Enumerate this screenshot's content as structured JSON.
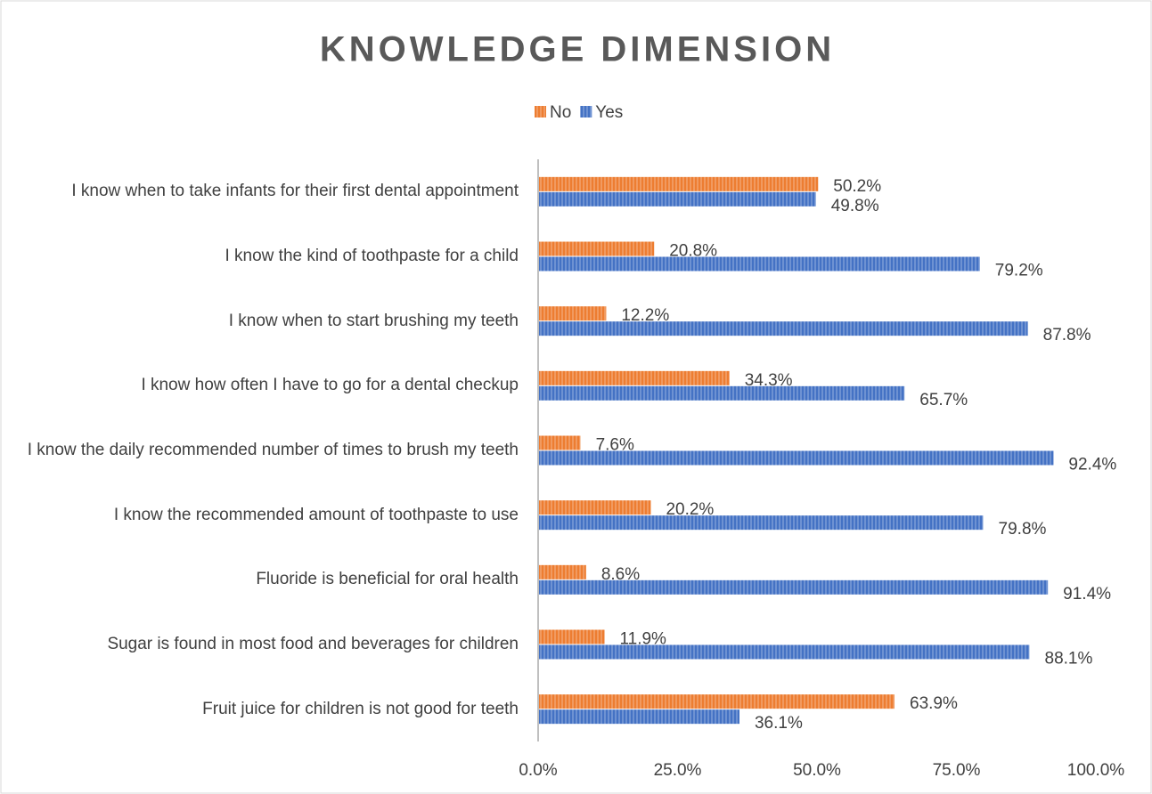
{
  "chart_data": {
    "type": "hbar",
    "title": "KNOWLEDGE DIMENSION",
    "categories": [
      "I know when to take infants for their first dental appointment",
      "I know the kind of toothpaste for a child",
      "I know when to start brushing my teeth",
      "I know how often I have to go for a dental checkup",
      "I know the daily recommended number of times to brush my teeth",
      "I know the recommended amount of toothpaste to use",
      "Fluoride is beneficial for oral health",
      "Sugar is found in most food and beverages for children",
      "Fruit juice for children is not good for teeth"
    ],
    "series": [
      {
        "name": "No",
        "color": "#ED7D31",
        "values": [
          50.2,
          20.8,
          12.2,
          34.3,
          7.6,
          20.2,
          8.6,
          11.9,
          63.9
        ],
        "value_labels": [
          "50.2%",
          "20.8%",
          "12.2%",
          "34.3%",
          "7.6%",
          "20.2%",
          "8.6%",
          "11.9%",
          "63.9%"
        ]
      },
      {
        "name": "Yes",
        "color": "#4472C4",
        "values": [
          49.8,
          79.2,
          87.8,
          65.7,
          92.4,
          79.8,
          91.4,
          88.1,
          36.1
        ],
        "value_labels": [
          "49.8%",
          "79.2%",
          "87.8%",
          "65.7%",
          "92.4%",
          "79.8%",
          "91.4%",
          "88.1%",
          "36.1%"
        ]
      }
    ],
    "xlim": [
      0,
      100
    ],
    "xticks": [
      {
        "value": 0,
        "label": "0.0%"
      },
      {
        "value": 25,
        "label": "25.0%"
      },
      {
        "value": 50,
        "label": "50.0%"
      },
      {
        "value": 75,
        "label": "75.0%"
      },
      {
        "value": 100,
        "label": "100.0%"
      }
    ],
    "grid": false,
    "legend": "top"
  }
}
